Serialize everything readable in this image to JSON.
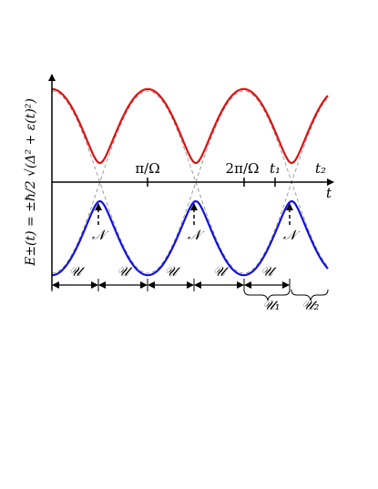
{
  "axes": {
    "y_label": "E±(t) = ±ħ/2 √(Δ² + ε(t)²)",
    "x_label": "t",
    "ticks": [
      "π/Ω",
      "2π/Ω",
      "t₁",
      "t₂"
    ]
  },
  "crossings": {
    "labels": [
      "𝒩",
      "𝒩",
      "𝒩"
    ]
  },
  "intervals": {
    "labels": [
      "𝒰",
      "𝒰",
      "𝒰",
      "𝒰",
      "𝒰"
    ]
  },
  "sub_intervals": {
    "labels": [
      "𝒰₁",
      "𝒰₂"
    ]
  }
}
